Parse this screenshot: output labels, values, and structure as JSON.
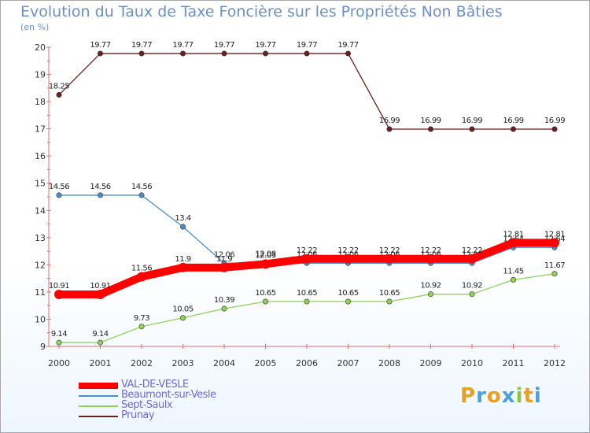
{
  "chart_data": {
    "type": "line",
    "title": "Evolution du Taux de Taxe Foncière sur les Propriétés Non Bâties",
    "unit_label": "(en %)",
    "x": [
      "2000",
      "2001",
      "2002",
      "2003",
      "2004",
      "2005",
      "2006",
      "2007",
      "2008",
      "2009",
      "2010",
      "2011",
      "2012"
    ],
    "yticks": [
      "9",
      "10",
      "11",
      "12",
      "13",
      "14",
      "15",
      "16",
      "17",
      "18",
      "19",
      "20"
    ],
    "ylim": [
      9,
      20
    ],
    "series": [
      {
        "name": "Prunay",
        "color": "#6b1f1f",
        "values": [
          18.25,
          19.77,
          19.77,
          19.77,
          19.77,
          19.77,
          19.77,
          19.77,
          16.99,
          16.99,
          16.99,
          16.99,
          16.99
        ],
        "labels": [
          "18.25",
          "19.77",
          "19.77",
          "19.77",
          "19.77",
          "19.77",
          "19.77",
          "19.77",
          "16.99",
          "16.99",
          "16.99",
          "16.99",
          "16.99"
        ]
      },
      {
        "name": "Beaumont-sur-Vesle",
        "color": "#4a8fc9",
        "values": [
          14.56,
          14.56,
          14.56,
          13.4,
          12.06,
          12.08,
          12.06,
          12.06,
          12.06,
          12.06,
          12.06,
          12.64,
          12.64
        ],
        "labels": [
          "14.56",
          "14.56",
          "14.56",
          "13.4",
          "12.06",
          "12.08",
          "12.06",
          "12.06",
          "12.06",
          "12.06",
          "12.06",
          "12.64",
          "12.64"
        ]
      },
      {
        "name": "Sept-Saulx",
        "color": "#8fd454",
        "values": [
          9.14,
          9.14,
          9.73,
          10.05,
          10.39,
          10.65,
          10.65,
          10.65,
          10.65,
          10.92,
          10.92,
          11.45,
          11.67
        ],
        "labels": [
          "9.14",
          "9.14",
          "9.73",
          "10.05",
          "10.39",
          "10.65",
          "10.65",
          "10.65",
          "10.65",
          "10.92",
          "10.92",
          "11.45",
          "11.67"
        ]
      },
      {
        "name": "VAL-DE-VESLE",
        "color": "#ff0000",
        "values": [
          10.91,
          10.91,
          11.56,
          11.9,
          11.9,
          12.03,
          12.22,
          12.22,
          12.22,
          12.22,
          12.22,
          12.81,
          12.81
        ],
        "labels": [
          "10.91",
          "10.91",
          "11.56",
          "11.9",
          "11.9",
          "12.03",
          "12.22",
          "12.22",
          "12.22",
          "12.22",
          "12.22",
          "12.81",
          "12.81"
        ]
      }
    ],
    "legend": [
      {
        "name": "VAL-DE-VESLE",
        "color": "#ff0000",
        "thick": true
      },
      {
        "name": "Beaumont-sur-Vesle",
        "color": "#4a8fc9",
        "thick": false
      },
      {
        "name": "Sept-Saulx",
        "color": "#8fd454",
        "thick": false
      },
      {
        "name": "Prunay",
        "color": "#6b1f1f",
        "thick": false
      }
    ],
    "grid": false,
    "legend_position": "bottom-left"
  },
  "logo": {
    "text": "Proxiti",
    "letters": [
      "P",
      "r",
      "o",
      "x",
      "i",
      "t",
      "i"
    ],
    "colors": [
      "#e8a020",
      "#4aa0d8",
      "#e8a020",
      "#4aa0d8",
      "#8cc63e",
      "#e8a020",
      "#4aa0d8"
    ]
  }
}
